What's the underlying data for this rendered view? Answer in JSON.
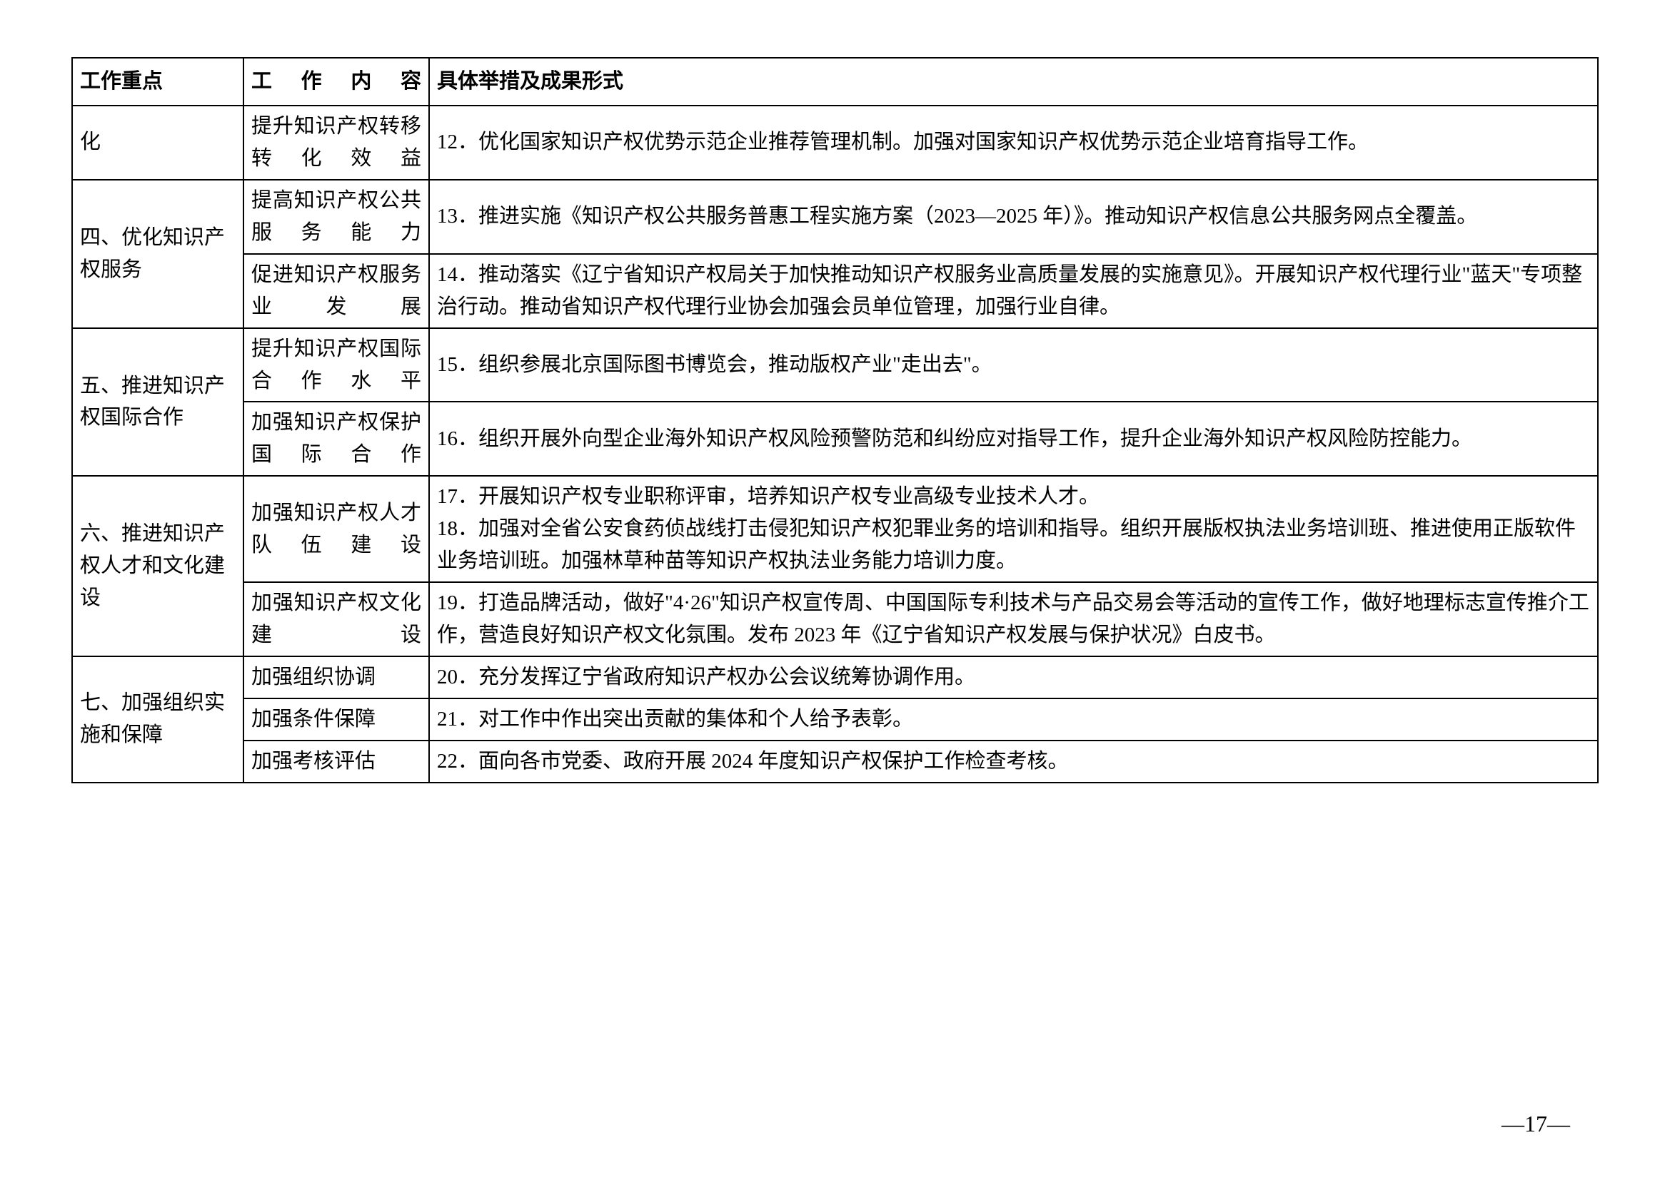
{
  "table": {
    "headers": {
      "col1": "工作重点",
      "col2": "工作内容",
      "col3": "具体举措及成果形式"
    },
    "rows": [
      {
        "focus": "化",
        "content": "提升知识产权转移转化效益",
        "measures": "12．优化国家知识产权优势示范企业推荐管理机制。加强对国家知识产权优势示范企业培育指导工作。"
      },
      {
        "focus": "四、优化知识产权服务",
        "content": "提高知识产权公共服务能力",
        "measures": "13．推进实施《知识产权公共服务普惠工程实施方案（2023—2025 年）》。推动知识产权信息公共服务网点全覆盖。"
      },
      {
        "content": "促进知识产权服务业发展",
        "measures": "14．推动落实《辽宁省知识产权局关于加快推动知识产权服务业高质量发展的实施意见》。开展知识产权代理行业\"蓝天\"专项整治行动。推动省知识产权代理行业协会加强会员单位管理，加强行业自律。"
      },
      {
        "focus": "五、推进知识产权国际合作",
        "content": "提升知识产权国际合作水平",
        "measures": "15．组织参展北京国际图书博览会，推动版权产业\"走出去\"。"
      },
      {
        "content": "加强知识产权保护国际合作",
        "measures": "16．组织开展外向型企业海外知识产权风险预警防范和纠纷应对指导工作，提升企业海外知识产权风险防控能力。"
      },
      {
        "focus": "六、推进知识产权人才和文化建设",
        "content": "加强知识产权人才队伍建设",
        "measures": "17．开展知识产权专业职称评审，培养知识产权专业高级专业技术人才。\n18．加强对全省公安食药侦战线打击侵犯知识产权犯罪业务的培训和指导。组织开展版权执法业务培训班、推进使用正版软件业务培训班。加强林草种苗等知识产权执法业务能力培训力度。"
      },
      {
        "content": "加强知识产权文化建设",
        "measures": "19．打造品牌活动，做好\"4·26\"知识产权宣传周、中国国际专利技术与产品交易会等活动的宣传工作，做好地理标志宣传推介工作，营造良好知识产权文化氛围。发布 2023 年《辽宁省知识产权发展与保护状况》白皮书。"
      },
      {
        "focus": "七、加强组织实施和保障",
        "content": "加强组织协调",
        "measures": "20．充分发挥辽宁省政府知识产权办公会议统筹协调作用。"
      },
      {
        "content": "加强条件保障",
        "measures": "21．对工作中作出突出贡献的集体和个人给予表彰。"
      },
      {
        "content": "加强考核评估",
        "measures": "22．面向各市党委、政府开展 2024 年度知识产权保护工作检查考核。"
      }
    ]
  },
  "page_number": "—17—"
}
